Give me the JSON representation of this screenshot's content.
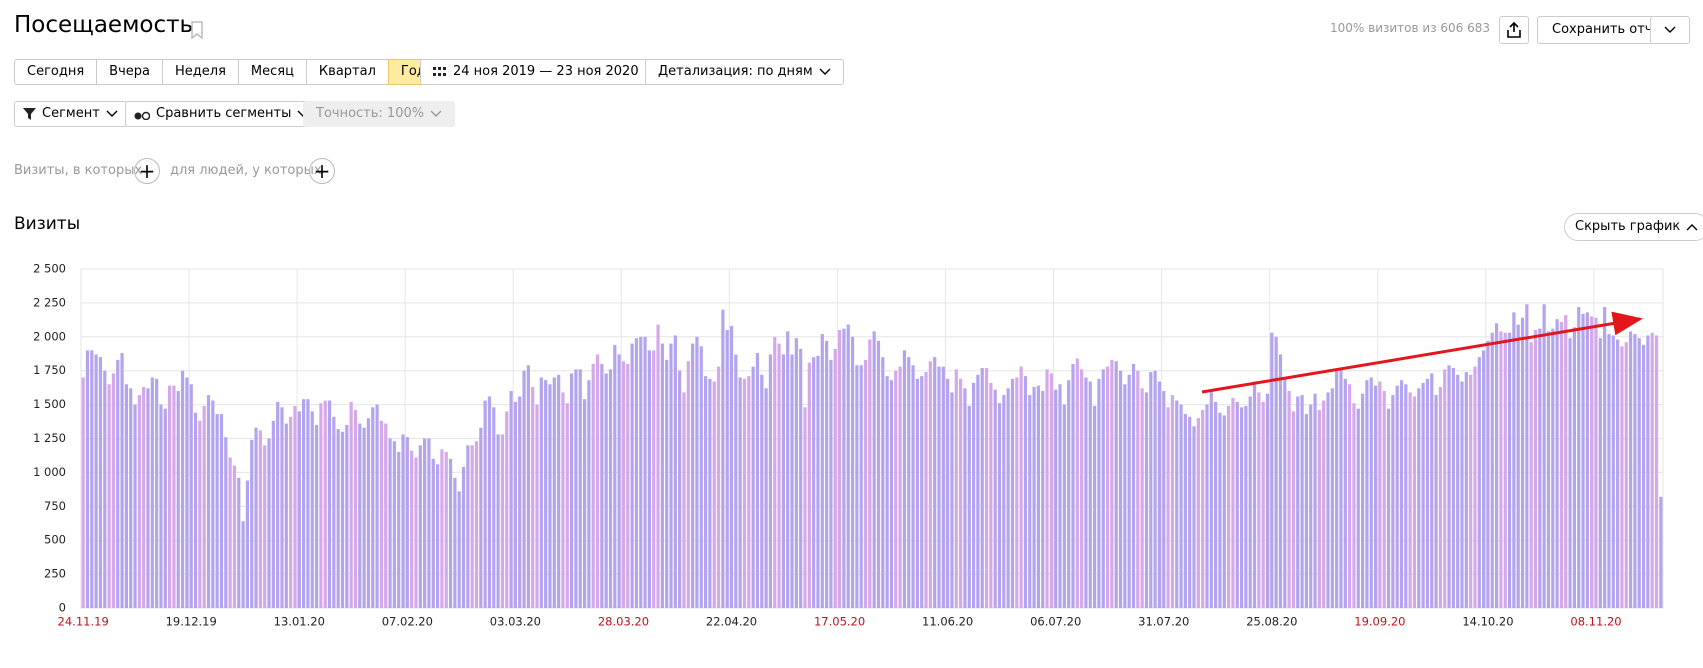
{
  "header": {
    "title": "Посещаемость",
    "visits_share": "100% визитов из 606 683",
    "save_button": "Сохранить отчет"
  },
  "periods": {
    "buttons": [
      "Сегодня",
      "Вчера",
      "Неделя",
      "Месяц",
      "Квартал",
      "Год"
    ],
    "active": "Год"
  },
  "date_range": "24 ноя 2019 — 23 ноя 2020",
  "detail": "Детализация: по дням",
  "filters": {
    "segment": "Сегмент",
    "compare": "Сравнить сегменты",
    "accuracy": "Точность: 100%"
  },
  "conditions": {
    "visits": "Визиты, в которых",
    "people": "для людей, у которых"
  },
  "hide_chart": "Скрыть график",
  "chart_data": {
    "type": "bar",
    "title": "Визиты",
    "color": "#b4a4ef",
    "weekend_color": "#d5a8ec",
    "grid": true,
    "weekend_label_color": "#c0121b",
    "ylim": [
      0,
      2500
    ],
    "yticks": [
      0,
      250,
      500,
      750,
      {
        "value": 1000,
        "label": "1 000"
      },
      {
        "value": 1250,
        "label": "1 250"
      },
      {
        "value": 1500,
        "label": "1 500"
      },
      {
        "value": 1750,
        "label": "1 750"
      },
      {
        "value": 2000,
        "label": "2 000"
      },
      {
        "value": 2250,
        "label": "2 250"
      },
      {
        "value": 2500,
        "label": "2 500"
      }
    ],
    "categories": [
      "24.11.19",
      null,
      null,
      null,
      null,
      null,
      null,
      null,
      null,
      null,
      null,
      null,
      null,
      null,
      null,
      null,
      null,
      null,
      null,
      null,
      null,
      null,
      null,
      null,
      null,
      "19.12.19",
      null,
      null,
      null,
      null,
      null,
      null,
      null,
      null,
      null,
      null,
      null,
      null,
      null,
      null,
      null,
      null,
      null,
      null,
      null,
      null,
      null,
      null,
      null,
      null,
      "13.01.20",
      null,
      null,
      null,
      null,
      null,
      null,
      null,
      null,
      null,
      null,
      null,
      null,
      null,
      null,
      null,
      null,
      null,
      null,
      null,
      null,
      null,
      null,
      null,
      null,
      "07.02.20",
      null,
      null,
      null,
      null,
      null,
      null,
      null,
      null,
      null,
      null,
      null,
      null,
      null,
      null,
      null,
      null,
      null,
      null,
      null,
      null,
      null,
      null,
      null,
      null,
      "03.03.20",
      null,
      null,
      null,
      null,
      null,
      null,
      null,
      null,
      null,
      null,
      null,
      null,
      null,
      null,
      null,
      null,
      null,
      null,
      null,
      null,
      null,
      null,
      null,
      null,
      "28.03.20",
      null,
      null,
      null,
      null,
      null,
      null,
      null,
      null,
      null,
      null,
      null,
      null,
      null,
      null,
      null,
      null,
      null,
      null,
      null,
      null,
      null,
      null,
      null,
      null,
      "22.04.20",
      null,
      null,
      null,
      null,
      null,
      null,
      null,
      null,
      null,
      null,
      null,
      null,
      null,
      null,
      null,
      null,
      null,
      null,
      null,
      null,
      null,
      null,
      null,
      null,
      "17.05.20",
      null,
      null,
      null,
      null,
      null,
      null,
      null,
      null,
      null,
      null,
      null,
      null,
      null,
      null,
      null,
      null,
      null,
      null,
      null,
      null,
      null,
      null,
      null,
      null,
      "11.06.20",
      null,
      null,
      null,
      null,
      null,
      null,
      null,
      null,
      null,
      null,
      null,
      null,
      null,
      null,
      null,
      null,
      null,
      null,
      null,
      null,
      null,
      null,
      null,
      null,
      "06.07.20",
      null,
      null,
      null,
      null,
      null,
      null,
      null,
      null,
      null,
      null,
      null,
      null,
      null,
      null,
      null,
      null,
      null,
      null,
      null,
      null,
      null,
      null,
      null,
      null,
      "31.07.20",
      null,
      null,
      null,
      null,
      null,
      null,
      null,
      null,
      null,
      null,
      null,
      null,
      null,
      null,
      null,
      null,
      null,
      null,
      null,
      null,
      null,
      null,
      null,
      null,
      "25.08.20",
      null,
      null,
      null,
      null,
      null,
      null,
      null,
      null,
      null,
      null,
      null,
      null,
      null,
      null,
      null,
      null,
      null,
      null,
      null,
      null,
      null,
      null,
      null,
      null,
      "19.09.20",
      null,
      null,
      null,
      null,
      null,
      null,
      null,
      null,
      null,
      null,
      null,
      null,
      null,
      null,
      null,
      null,
      null,
      null,
      null,
      null,
      null,
      null,
      null,
      null,
      "14.10.20",
      null,
      null,
      null,
      null,
      null,
      null,
      null,
      null,
      null,
      null,
      null,
      null,
      null,
      null,
      null,
      null,
      null,
      null,
      null,
      null,
      null,
      null,
      null,
      null,
      "08.11.20",
      null,
      null,
      null,
      null,
      null,
      null,
      null,
      null,
      null,
      null,
      null,
      null,
      null,
      null,
      null
    ],
    "values": [
      1700,
      1900,
      1900,
      1870,
      1850,
      1750,
      1650,
      1730,
      1830,
      1880,
      1650,
      1620,
      1500,
      1570,
      1630,
      1620,
      1700,
      1690,
      1500,
      1470,
      1640,
      1640,
      1600,
      1750,
      1700,
      1650,
      1440,
      1380,
      1490,
      1570,
      1530,
      1430,
      1430,
      1260,
      1110,
      1050,
      960,
      640,
      940,
      1240,
      1330,
      1310,
      1200,
      1250,
      1380,
      1520,
      1480,
      1360,
      1410,
      1490,
      1450,
      1540,
      1540,
      1450,
      1350,
      1510,
      1530,
      1530,
      1410,
      1320,
      1300,
      1350,
      1520,
      1460,
      1360,
      1330,
      1400,
      1480,
      1500,
      1380,
      1360,
      1250,
      1230,
      1150,
      1280,
      1260,
      1160,
      1110,
      1200,
      1250,
      1250,
      1100,
      1060,
      1170,
      1150,
      1100,
      960,
      860,
      1040,
      1200,
      1200,
      1230,
      1330,
      1530,
      1560,
      1480,
      1280,
      1280,
      1450,
      1600,
      1520,
      1560,
      1750,
      1790,
      1630,
      1500,
      1700,
      1680,
      1650,
      1700,
      1720,
      1590,
      1510,
      1730,
      1760,
      1760,
      1540,
      1680,
      1800,
      1870,
      1800,
      1730,
      1760,
      1940,
      1870,
      1820,
      1800,
      1950,
      1990,
      2000,
      2000,
      1900,
      1900,
      2090,
      1950,
      1830,
      1950,
      2010,
      1750,
      1590,
      1820,
      1950,
      2000,
      1930,
      1710,
      1690,
      1670,
      1780,
      2200,
      2050,
      2080,
      1870,
      1700,
      1690,
      1710,
      1780,
      1880,
      1720,
      1620,
      1870,
      2000,
      1950,
      1870,
      2040,
      1870,
      1990,
      1910,
      1480,
      1810,
      1850,
      1860,
      2020,
      1970,
      1830,
      1910,
      2050,
      2060,
      2090,
      2000,
      1790,
      1790,
      1830,
      1980,
      2040,
      1970,
      1850,
      1710,
      1680,
      1750,
      1780,
      1900,
      1850,
      1790,
      1690,
      1710,
      1740,
      1820,
      1850,
      1780,
      1780,
      1690,
      1590,
      1760,
      1690,
      1620,
      1490,
      1660,
      1720,
      1770,
      1770,
      1660,
      1610,
      1510,
      1570,
      1620,
      1690,
      1700,
      1780,
      1710,
      1570,
      1630,
      1640,
      1600,
      1760,
      1730,
      1610,
      1650,
      1500,
      1680,
      1800,
      1840,
      1760,
      1700,
      1670,
      1490,
      1690,
      1760,
      1780,
      1830,
      1820,
      1750,
      1650,
      1720,
      1800,
      1750,
      1620,
      1590,
      1740,
      1750,
      1670,
      1600,
      1480,
      1570,
      1530,
      1500,
      1430,
      1410,
      1340,
      1400,
      1460,
      1500,
      1600,
      1520,
      1440,
      1420,
      1490,
      1550,
      1520,
      1480,
      1490,
      1560,
      1670,
      1590,
      1520,
      1580,
      2030,
      2000,
      1870,
      1700,
      1600,
      1450,
      1560,
      1570,
      1430,
      1500,
      1580,
      1460,
      1530,
      1590,
      1620,
      1750,
      1760,
      1690,
      1650,
      1510,
      1470,
      1580,
      1680,
      1700,
      1640,
      1670,
      1600,
      1470,
      1570,
      1640,
      1680,
      1650,
      1590,
      1560,
      1620,
      1660,
      1690,
      1730,
      1570,
      1630,
      1760,
      1790,
      1770,
      1720,
      1670,
      1740,
      1720,
      1780,
      1850,
      1900,
      1970,
      2030,
      2100,
      2040,
      2030,
      2030,
      2180,
      2090,
      2140,
      2240,
      1960,
      2050,
      2060,
      2240,
      2040,
      2060,
      2130,
      2110,
      2160,
      1990,
      2070,
      2220,
      2170,
      2180,
      2150,
      2140,
      1990,
      2220,
      2020,
      2010,
      1980,
      1930,
      1960,
      2040,
      2020,
      1990,
      1940,
      2010,
      2030,
      2010,
      820
    ]
  }
}
